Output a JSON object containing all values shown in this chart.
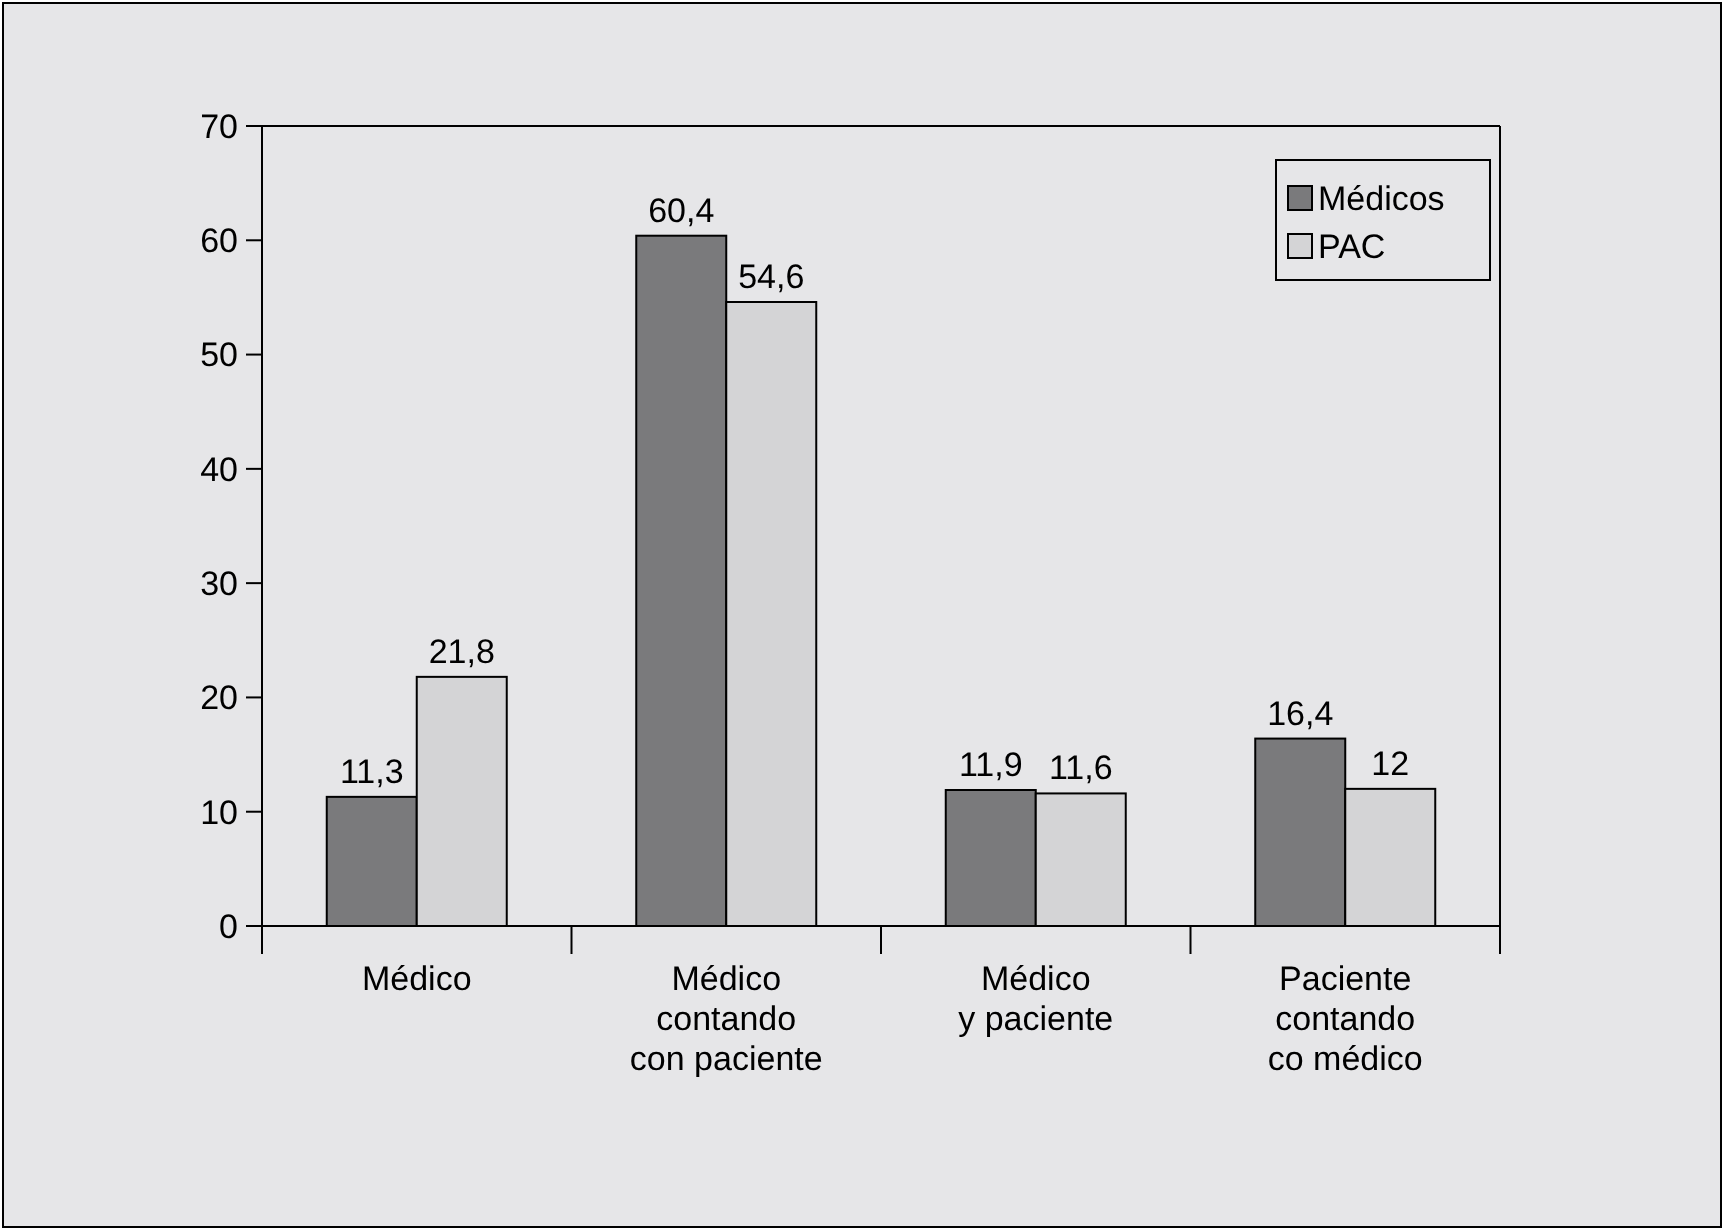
{
  "chart_data": {
    "type": "bar",
    "categories": [
      "Médico",
      "Médico\ncontando\ncon paciente",
      "Médico\ny paciente",
      "Paciente\ncontando\nco médico"
    ],
    "series": [
      {
        "name": "Médicos",
        "color": "#7a7a7c",
        "values": [
          11.3,
          60.4,
          11.9,
          16.4
        ],
        "value_labels": [
          "11,3",
          "60,4",
          "11,9",
          "16,4"
        ]
      },
      {
        "name": "PAC",
        "color": "#d4d4d6",
        "values": [
          21.8,
          54.6,
          11.6,
          12
        ],
        "value_labels": [
          "21,8",
          "54,6",
          "11,6",
          "12"
        ]
      }
    ],
    "ylim": [
      0,
      70
    ],
    "yticks": [
      0,
      10,
      20,
      30,
      40,
      50,
      60,
      70
    ],
    "grid": false,
    "legend": "top right"
  }
}
